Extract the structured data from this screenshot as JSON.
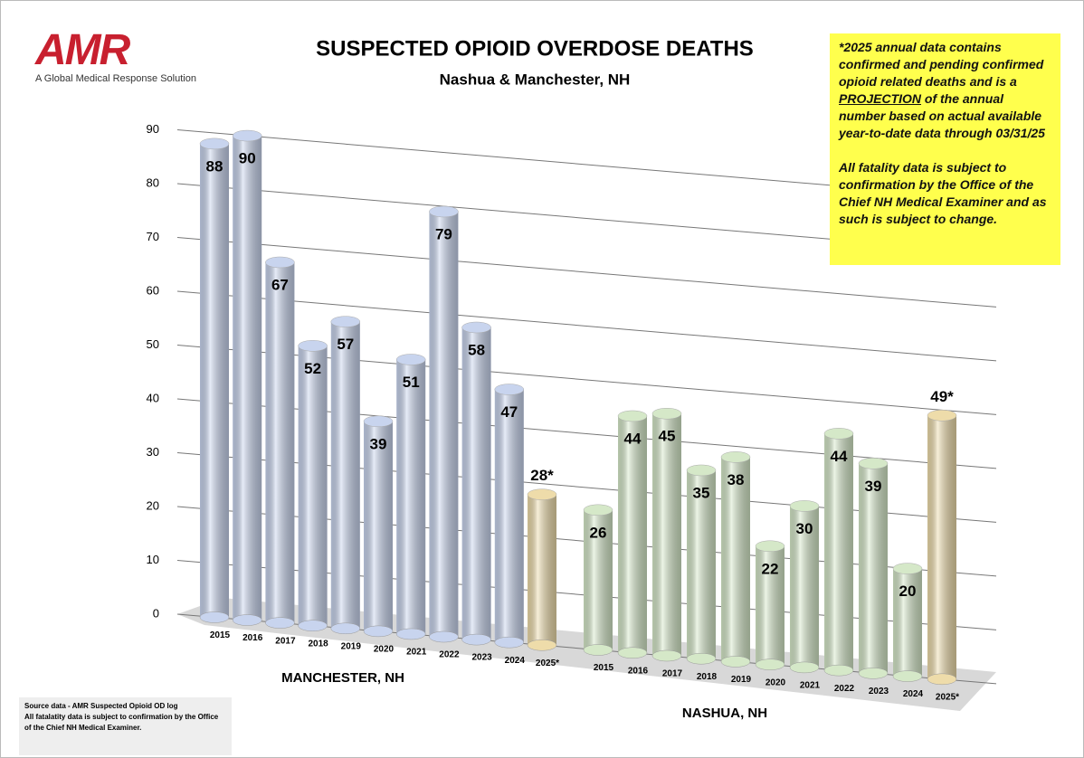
{
  "logo": {
    "mark": "AMR",
    "tagline": "A Global Medical Response Solution"
  },
  "note": {
    "paragraphs": [
      [
        "*2025 annual data contains confirmed and pending confirmed opioid related deaths and is a ",
        "PROJECTION",
        " of the annual number based on actual available year-to-date data through 03/31/25"
      ],
      [
        "All fatality data is subject to confirmation by the Office of the Chief NH Medical Examiner and as such is subject to change."
      ]
    ]
  },
  "source": [
    "Source data - AMR Suspected Opioid OD log",
    "All fatalatity data is subject to confirmation by the Office",
    "of the Chief NH Medical Examiner."
  ],
  "chart_data": {
    "type": "bar",
    "title": "SUSPECTED OPIOID OVERDOSE DEATHS",
    "subtitle": "Nashua & Manchester, NH",
    "ylim": [
      0,
      90
    ],
    "yticks": [
      0,
      10,
      20,
      30,
      40,
      50,
      60,
      70,
      80,
      90
    ],
    "grid": true,
    "groups": [
      {
        "name": "MANCHESTER, NH",
        "categories": [
          "2015",
          "2016",
          "2017",
          "2018",
          "2019",
          "2020",
          "2021",
          "2022",
          "2023",
          "2024",
          "2025*"
        ],
        "values": [
          88,
          90,
          67,
          52,
          57,
          39,
          51,
          79,
          58,
          47,
          28
        ],
        "value_labels": [
          "88",
          "90",
          "67",
          "52",
          "57",
          "39",
          "51",
          "79",
          "58",
          "47",
          "28*"
        ],
        "colors": [
          "#c8d4ee",
          "#c8d4ee",
          "#c8d4ee",
          "#c8d4ee",
          "#c8d4ee",
          "#c8d4ee",
          "#c8d4ee",
          "#c8d4ee",
          "#c8d4ee",
          "#c8d4ee",
          "#eedcaa"
        ]
      },
      {
        "name": "NASHUA, NH",
        "categories": [
          "2015",
          "2016",
          "2017",
          "2018",
          "2019",
          "2020",
          "2021",
          "2022",
          "2023",
          "2024",
          "2025*"
        ],
        "values": [
          26,
          44,
          45,
          35,
          38,
          22,
          30,
          44,
          39,
          20,
          49
        ],
        "value_labels": [
          "26",
          "44",
          "45",
          "35",
          "38",
          "22",
          "30",
          "44",
          "39",
          "20",
          "49*"
        ],
        "colors": [
          "#d5e8c8",
          "#d5e8c8",
          "#d5e8c8",
          "#d5e8c8",
          "#d5e8c8",
          "#d5e8c8",
          "#d5e8c8",
          "#d5e8c8",
          "#d5e8c8",
          "#d5e8c8",
          "#eedcaa"
        ]
      }
    ]
  }
}
